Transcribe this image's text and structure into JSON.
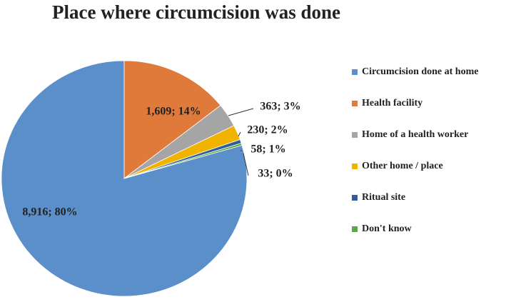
{
  "chart_data": {
    "type": "pie",
    "title": "Place where circumcision was done",
    "categories": [
      "Circumcision done at home",
      "Health facility",
      "Home of a health worker",
      "Other home / place",
      "Ritual site",
      "Don't know"
    ],
    "values": [
      8916,
      1609,
      363,
      230,
      58,
      33
    ],
    "value_labels": [
      "8,916; 80%",
      "1,609; 14%",
      "363; 3%",
      "230; 2%",
      "58; 1%",
      "33; 0%"
    ],
    "colors": [
      "#5b8fca",
      "#e07a3a",
      "#a5a5a5",
      "#f0b400",
      "#2e5f9c",
      "#5aa843"
    ],
    "legend": "right"
  }
}
